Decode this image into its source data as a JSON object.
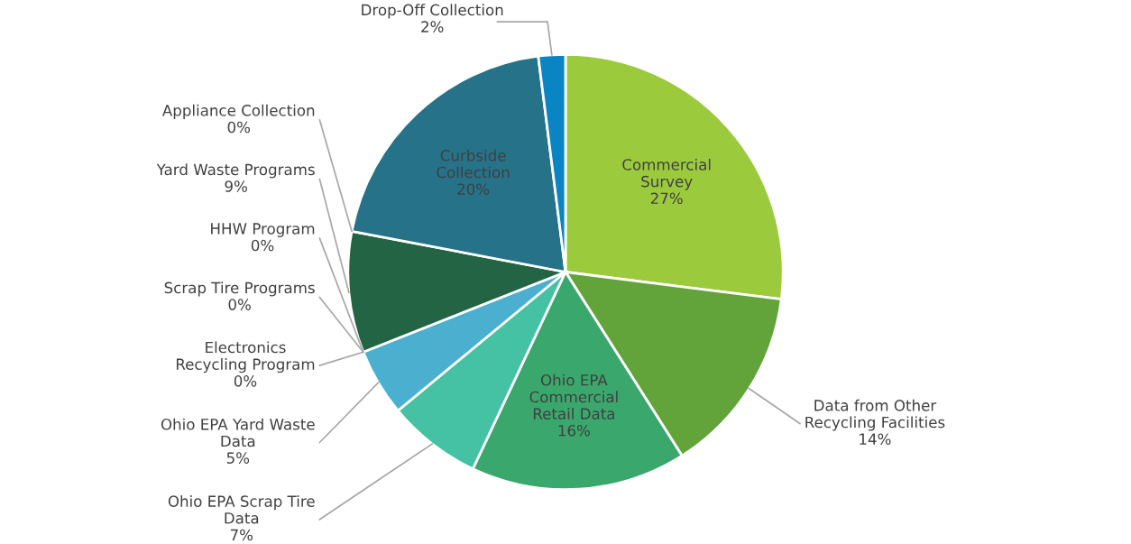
{
  "chart_data": {
    "type": "pie",
    "categories": [
      "Commercial Survey",
      "Data from Other Recycling Facilities",
      "Ohio EPA Commercial Retail Data",
      "Ohio EPA Scrap Tire Data",
      "Ohio EPA Yard Waste Data",
      "HHW Program",
      "Scrap Tire Programs",
      "Electronics Recycling Program",
      "Yard Waste Programs",
      "Appliance Collection",
      "Curbside Collection",
      "Drop-Off Collection"
    ],
    "values": [
      27,
      14,
      16,
      7,
      5,
      0,
      0,
      0,
      9,
      0,
      20,
      2
    ],
    "value_labels": [
      "27%",
      "14%",
      "16%",
      "7%",
      "5%",
      "0%",
      "0%",
      "0%",
      "9%",
      "0%",
      "20%",
      "2%"
    ],
    "colors": [
      "#9bcb3c",
      "#62a33a",
      "#3aa76d",
      "#45c1a3",
      "#4bb0d0",
      "#3f8fb0",
      "#2f7d5a",
      "#1f5c7a",
      "#226444",
      "#1a5c5c",
      "#267288",
      "#0b84c4"
    ]
  }
}
